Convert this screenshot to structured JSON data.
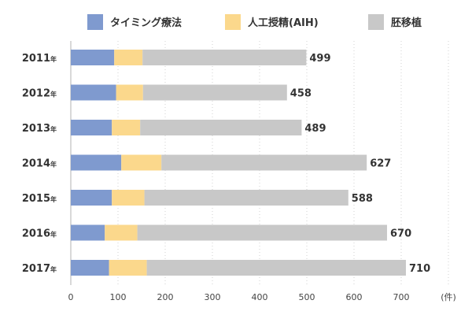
{
  "chart_data": {
    "type": "bar",
    "orientation": "horizontal",
    "stacked": true,
    "categories": [
      "2011",
      "2012",
      "2013",
      "2014",
      "2015",
      "2016",
      "2017"
    ],
    "category_suffix": "年",
    "series": [
      {
        "name": "タイミング療法",
        "color": "#7f9acf",
        "values": [
          92,
          96,
          87,
          107,
          87,
          72,
          81
        ]
      },
      {
        "name": "人工授精(AIH)",
        "color": "#fbd88c",
        "values": [
          60,
          57,
          60,
          85,
          69,
          69,
          80
        ]
      },
      {
        "name": "胚移植",
        "color": "#c8c8c8",
        "values": [
          347,
          305,
          342,
          435,
          432,
          529,
          549
        ]
      }
    ],
    "totals": [
      "499",
      "458",
      "489",
      "627",
      "588",
      "670",
      "710"
    ],
    "x_ticks": [
      0,
      100,
      200,
      300,
      400,
      500,
      600,
      700
    ],
    "xlim": [
      0,
      780
    ],
    "x_unit": "(件)",
    "grid": "vertical-dotted",
    "legend_position": "top"
  }
}
